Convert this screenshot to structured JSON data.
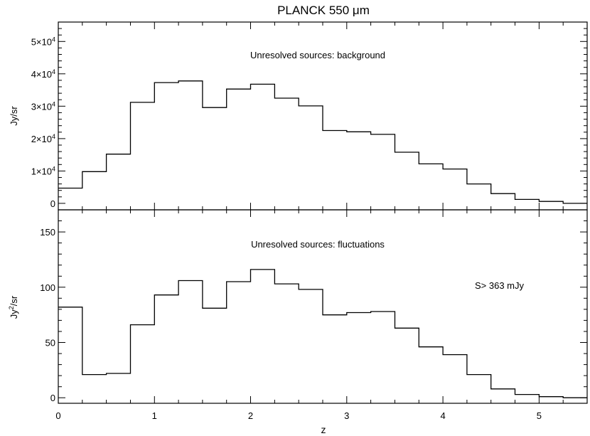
{
  "figure": {
    "title": "PLANCK 550 μm",
    "xlabel": "z",
    "x_ticks": [
      "0",
      "1",
      "2",
      "3",
      "4",
      "5"
    ]
  },
  "chart_data": [
    {
      "type": "line",
      "step": true,
      "annotation": "Unresolved sources: background",
      "ylabel": "Jy/sr",
      "xlim": [
        0,
        5.5
      ],
      "ylim": [
        -2000,
        56000
      ],
      "y_ticks": [
        {
          "value": 0,
          "label": "0"
        },
        {
          "value": 10000,
          "label": "1×10",
          "exp": "4"
        },
        {
          "value": 20000,
          "label": "2×10",
          "exp": "4"
        },
        {
          "value": 30000,
          "label": "3×10",
          "exp": "4"
        },
        {
          "value": 40000,
          "label": "4×10",
          "exp": "4"
        },
        {
          "value": 50000,
          "label": "5×10",
          "exp": "4"
        }
      ],
      "bin_edges": [
        0,
        0.25,
        0.5,
        0.75,
        1.0,
        1.25,
        1.5,
        1.75,
        2.0,
        2.25,
        2.5,
        2.75,
        3.0,
        3.25,
        3.5,
        3.75,
        4.0,
        4.25,
        4.5,
        4.75,
        5.0,
        5.25,
        5.5
      ],
      "values": [
        4700,
        9800,
        15200,
        31200,
        37300,
        37800,
        29600,
        35300,
        36800,
        32500,
        30100,
        22500,
        22100,
        21300,
        15800,
        12200,
        10600,
        6000,
        3000,
        1200,
        600,
        0
      ]
    },
    {
      "type": "line",
      "step": true,
      "annotation": "Unresolved sources: fluctuations",
      "note": "S> 363 mJy",
      "ylabel": "Jy²/sr",
      "ylabel_parts": [
        "Jy",
        "2",
        "/sr"
      ],
      "xlim": [
        0,
        5.5
      ],
      "ylim": [
        -5,
        170
      ],
      "y_ticks": [
        {
          "value": 0,
          "label": "0"
        },
        {
          "value": 50,
          "label": "50"
        },
        {
          "value": 100,
          "label": "100"
        },
        {
          "value": 150,
          "label": "150"
        }
      ],
      "bin_edges": [
        0,
        0.25,
        0.5,
        0.75,
        1.0,
        1.25,
        1.5,
        1.75,
        2.0,
        2.25,
        2.5,
        2.75,
        3.0,
        3.25,
        3.5,
        3.75,
        4.0,
        4.25,
        4.5,
        4.75,
        5.0,
        5.25,
        5.5
      ],
      "values": [
        82,
        21,
        22,
        66,
        93,
        106,
        81,
        105,
        116,
        103,
        98,
        75,
        77,
        78,
        63,
        46,
        39,
        21,
        8,
        3,
        1,
        0
      ]
    }
  ]
}
